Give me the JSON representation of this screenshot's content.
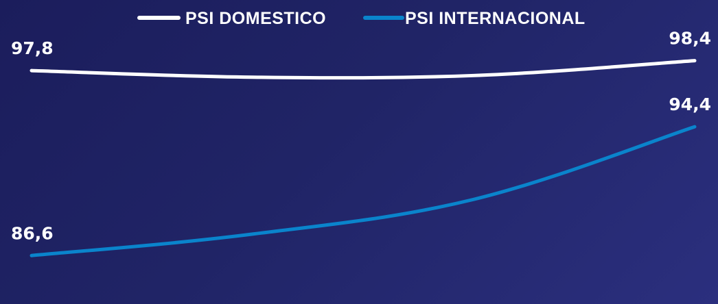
{
  "chart_data": {
    "type": "line",
    "title": "",
    "xlabel": "",
    "ylabel": "",
    "x": [
      0,
      1,
      2,
      3
    ],
    "ylim": [
      84,
      100
    ],
    "grid": false,
    "legend_position": "top-center",
    "series": [
      {
        "name": "PSI DOMESTICO",
        "color": "#ffffff",
        "values": [
          97.8,
          97.4,
          97.5,
          98.4
        ],
        "labels": [
          "97,8",
          "",
          "",
          "98,4"
        ]
      },
      {
        "name": "PSI INTERNACIONAL",
        "color": "#0a84cc",
        "values": [
          86.6,
          87.9,
          90.0,
          94.4
        ],
        "labels": [
          "86,6",
          "",
          "",
          "94,4"
        ]
      }
    ]
  }
}
